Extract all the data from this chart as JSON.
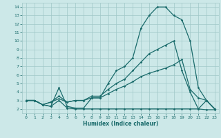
{
  "xlabel": "Humidex (Indice chaleur)",
  "xlim": [
    -0.5,
    23.5
  ],
  "ylim": [
    1.5,
    14.5
  ],
  "xticks": [
    0,
    1,
    2,
    3,
    4,
    5,
    6,
    7,
    8,
    9,
    10,
    11,
    12,
    13,
    14,
    15,
    16,
    17,
    18,
    19,
    20,
    21,
    22,
    23
  ],
  "yticks": [
    2,
    3,
    4,
    5,
    6,
    7,
    8,
    9,
    10,
    11,
    12,
    13,
    14
  ],
  "bg_color": "#cce8e8",
  "grid_color": "#a0c8c8",
  "line_color": "#1a6b6b",
  "line1_x": [
    0,
    1,
    2,
    3,
    4,
    5,
    6,
    7,
    8,
    9,
    10,
    11,
    12,
    13,
    14,
    15,
    16,
    17,
    18,
    19,
    20,
    21,
    22,
    23
  ],
  "line1_y": [
    3.0,
    3.0,
    2.5,
    2.3,
    4.5,
    2.3,
    2.1,
    2.1,
    3.3,
    3.3,
    5.0,
    6.5,
    7.0,
    8.0,
    11.5,
    13.0,
    14.0,
    14.0,
    13.0,
    12.5,
    10.0,
    4.5,
    3.0,
    2.0
  ],
  "line2_x": [
    0,
    1,
    2,
    3,
    4,
    5,
    6,
    7,
    8,
    9,
    10,
    11,
    12,
    13,
    14,
    15,
    16,
    17,
    18,
    19,
    20,
    21,
    22,
    23
  ],
  "line2_y": [
    3.0,
    3.0,
    2.5,
    2.3,
    3.0,
    2.1,
    2.0,
    2.0,
    2.0,
    2.0,
    2.0,
    2.0,
    2.0,
    2.0,
    2.0,
    2.0,
    2.0,
    2.0,
    2.0,
    2.0,
    2.0,
    2.0,
    1.9,
    1.9
  ],
  "line3_x": [
    0,
    1,
    2,
    3,
    4,
    5,
    6,
    7,
    8,
    9,
    10,
    11,
    12,
    13,
    14,
    15,
    16,
    17,
    18,
    19,
    20,
    21,
    22,
    23
  ],
  "line3_y": [
    3.0,
    3.0,
    2.5,
    2.8,
    3.2,
    2.8,
    3.0,
    3.0,
    3.3,
    3.3,
    3.8,
    4.3,
    4.7,
    5.2,
    5.8,
    6.2,
    6.5,
    6.8,
    7.2,
    7.8,
    4.3,
    3.3,
    3.0,
    2.0
  ],
  "line4_x": [
    0,
    1,
    2,
    3,
    4,
    5,
    6,
    7,
    8,
    9,
    10,
    11,
    12,
    13,
    14,
    15,
    16,
    17,
    18,
    19,
    20,
    21,
    22,
    23
  ],
  "line4_y": [
    3.0,
    3.0,
    2.5,
    2.8,
    3.5,
    2.8,
    3.0,
    3.0,
    3.5,
    3.5,
    4.3,
    5.0,
    5.5,
    6.5,
    7.5,
    8.5,
    9.0,
    9.5,
    10.0,
    6.5,
    4.0,
    2.0,
    3.0,
    2.0
  ]
}
